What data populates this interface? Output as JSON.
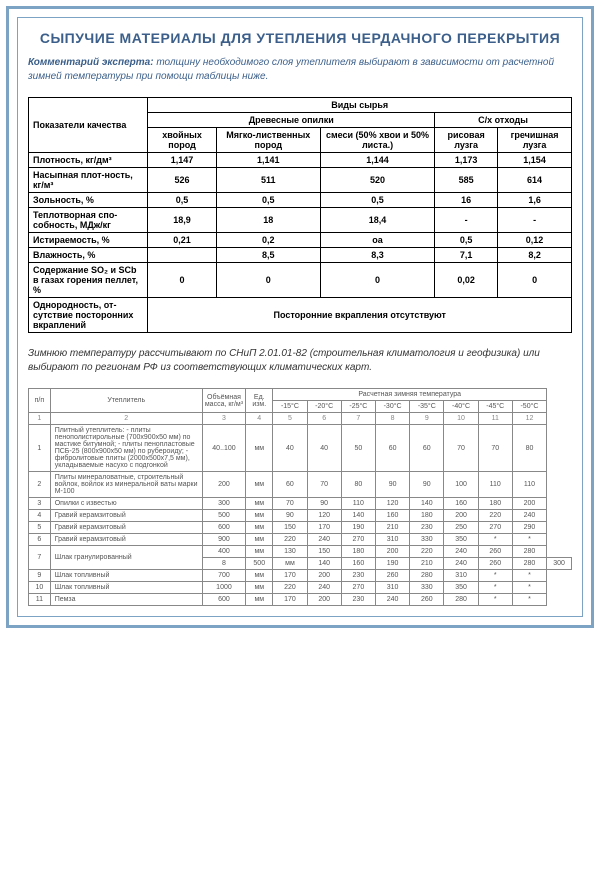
{
  "colors": {
    "border": "#7da3c4",
    "title": "#3b5f8a",
    "comment": "#3b5f8a",
    "t1_border": "#000000",
    "t2_border": "#888888",
    "t2_text": "#555555"
  },
  "title": "СЫПУЧИЕ МАТЕРИАЛЫ ДЛЯ УТЕПЛЕНИЯ ЧЕРДАЧНОГО ПЕРЕКРЫТИЯ",
  "comment_label": "Комментарий эксперта:",
  "comment_text": "толщину необходимого слоя утеплителя выбирают в зависимости от расчетной зимней температуры при помощи таблицы ниже.",
  "table1": {
    "h_quality": "Показатели качества",
    "h_raw": "Виды сырья",
    "h_sawdust": "Древесные опилки",
    "h_agri": "С/х отходы",
    "cols": [
      "хвойных пород",
      "Мягко-лиственных пород",
      "смеси (50% хвои и 50% листа.)",
      "рисовая лузга",
      "гречишная лузга"
    ],
    "rows": [
      {
        "label": "Плотность, кг/дм³",
        "v": [
          "1,147",
          "1,141",
          "1,144",
          "1,173",
          "1,154"
        ]
      },
      {
        "label": "Насыпная плот-ность, кг/м³",
        "v": [
          "526",
          "511",
          "520",
          "585",
          "614"
        ]
      },
      {
        "label": "Зольность, %",
        "v": [
          "0,5",
          "0,5",
          "0,5",
          "16",
          "1,6"
        ]
      },
      {
        "label": "Теплотворная спо-собность, МДж/кг",
        "v": [
          "18,9",
          "18",
          "18,4",
          "-",
          "-"
        ]
      },
      {
        "label": "Истираемость, %",
        "v": [
          "0,21",
          "0,2",
          "оа",
          "0,5",
          "0,12"
        ]
      },
      {
        "label": "Влажность, %",
        "v": [
          "",
          "8,5",
          "8,3",
          "7,1",
          "8,2"
        ]
      },
      {
        "label": "Содержание SO₂ и SCb в газах горения пеллет, %",
        "v": [
          "0",
          "0",
          "0",
          "0,02",
          "0"
        ]
      }
    ],
    "homog_label": "Однородность, от-сутствие посторонних вкраплений",
    "homog_value": "Посторонние вкрапления отсутствуют"
  },
  "note_text": "Зимнюю температуру рассчитывают по СНиП 2.01.01-82 (строительная климатология и геофизика) или выбирают по регионам РФ из соответствующих климатических карт.",
  "table2": {
    "h_np": "п/п",
    "h_mat": "Утеплитель",
    "h_mass": "Объёмная масса, кг/м³",
    "h_unit": "Ед. изм.",
    "h_temp": "Расчетная зимняя температура",
    "temps": [
      "-15°C",
      "-20°C",
      "-25°C",
      "-30°C",
      "-35°C",
      "-40°C",
      "-45°C",
      "-50°C"
    ],
    "numrow": [
      "1",
      "2",
      "3",
      "4",
      "5",
      "6",
      "7",
      "8",
      "9",
      "10",
      "11",
      "12"
    ],
    "rows": [
      {
        "n": "1",
        "name": "Плитный утеплитель:\n- плиты пенополистирольные (700х900х50 мм) по мастике битумной;\n- плиты пенопластовые ПСБ-25 (800х900х50 мм) по рубероиду;\n- фибролитовые плиты (2000х500х7,5 мм), укладываемые насухо с подгонкой",
        "mass": "40..100",
        "unit": "мм",
        "v": [
          "40",
          "40",
          "50",
          "60",
          "60",
          "70",
          "70",
          "80"
        ]
      },
      {
        "n": "2",
        "name": "Плиты минераловатные, строительный войлок, войлок из минеральной ваты марки М-100",
        "mass": "200",
        "unit": "мм",
        "v": [
          "60",
          "70",
          "80",
          "90",
          "90",
          "100",
          "110",
          "110"
        ]
      },
      {
        "n": "3",
        "name": "Опилки с известью",
        "mass": "300",
        "unit": "мм",
        "v": [
          "70",
          "90",
          "110",
          "120",
          "140",
          "160",
          "180",
          "200"
        ]
      },
      {
        "n": "4",
        "name": "Гравий керамзитовый",
        "mass": "500",
        "unit": "мм",
        "v": [
          "90",
          "120",
          "140",
          "160",
          "180",
          "200",
          "220",
          "240"
        ]
      },
      {
        "n": "5",
        "name": "Гравий керамзитовый",
        "mass": "600",
        "unit": "мм",
        "v": [
          "150",
          "170",
          "190",
          "210",
          "230",
          "250",
          "270",
          "290"
        ]
      },
      {
        "n": "6",
        "name": "Гравий керамзитовый",
        "mass": "900",
        "unit": "мм",
        "v": [
          "220",
          "240",
          "270",
          "310",
          "330",
          "350",
          "*",
          "*"
        ]
      },
      {
        "n": "7",
        "name": "Шлак гранулированный",
        "mass": "400",
        "unit": "мм",
        "v": [
          "130",
          "150",
          "180",
          "200",
          "220",
          "240",
          "260",
          "280"
        ],
        "rowspan": 2
      },
      {
        "n": "8",
        "name": "",
        "mass": "500",
        "unit": "мм",
        "v": [
          "140",
          "160",
          "190",
          "210",
          "240",
          "260",
          "280",
          "300"
        ]
      },
      {
        "n": "9",
        "name": "Шлак топливный",
        "mass": "700",
        "unit": "мм",
        "v": [
          "170",
          "200",
          "230",
          "260",
          "280",
          "310",
          "*",
          "*"
        ]
      },
      {
        "n": "10",
        "name": "Шлак топливный",
        "mass": "1000",
        "unit": "мм",
        "v": [
          "220",
          "240",
          "270",
          "310",
          "330",
          "350",
          "*",
          "*"
        ]
      },
      {
        "n": "11",
        "name": "Пемза",
        "mass": "600",
        "unit": "мм",
        "v": [
          "170",
          "200",
          "230",
          "240",
          "260",
          "280",
          "*",
          "*"
        ]
      }
    ]
  }
}
